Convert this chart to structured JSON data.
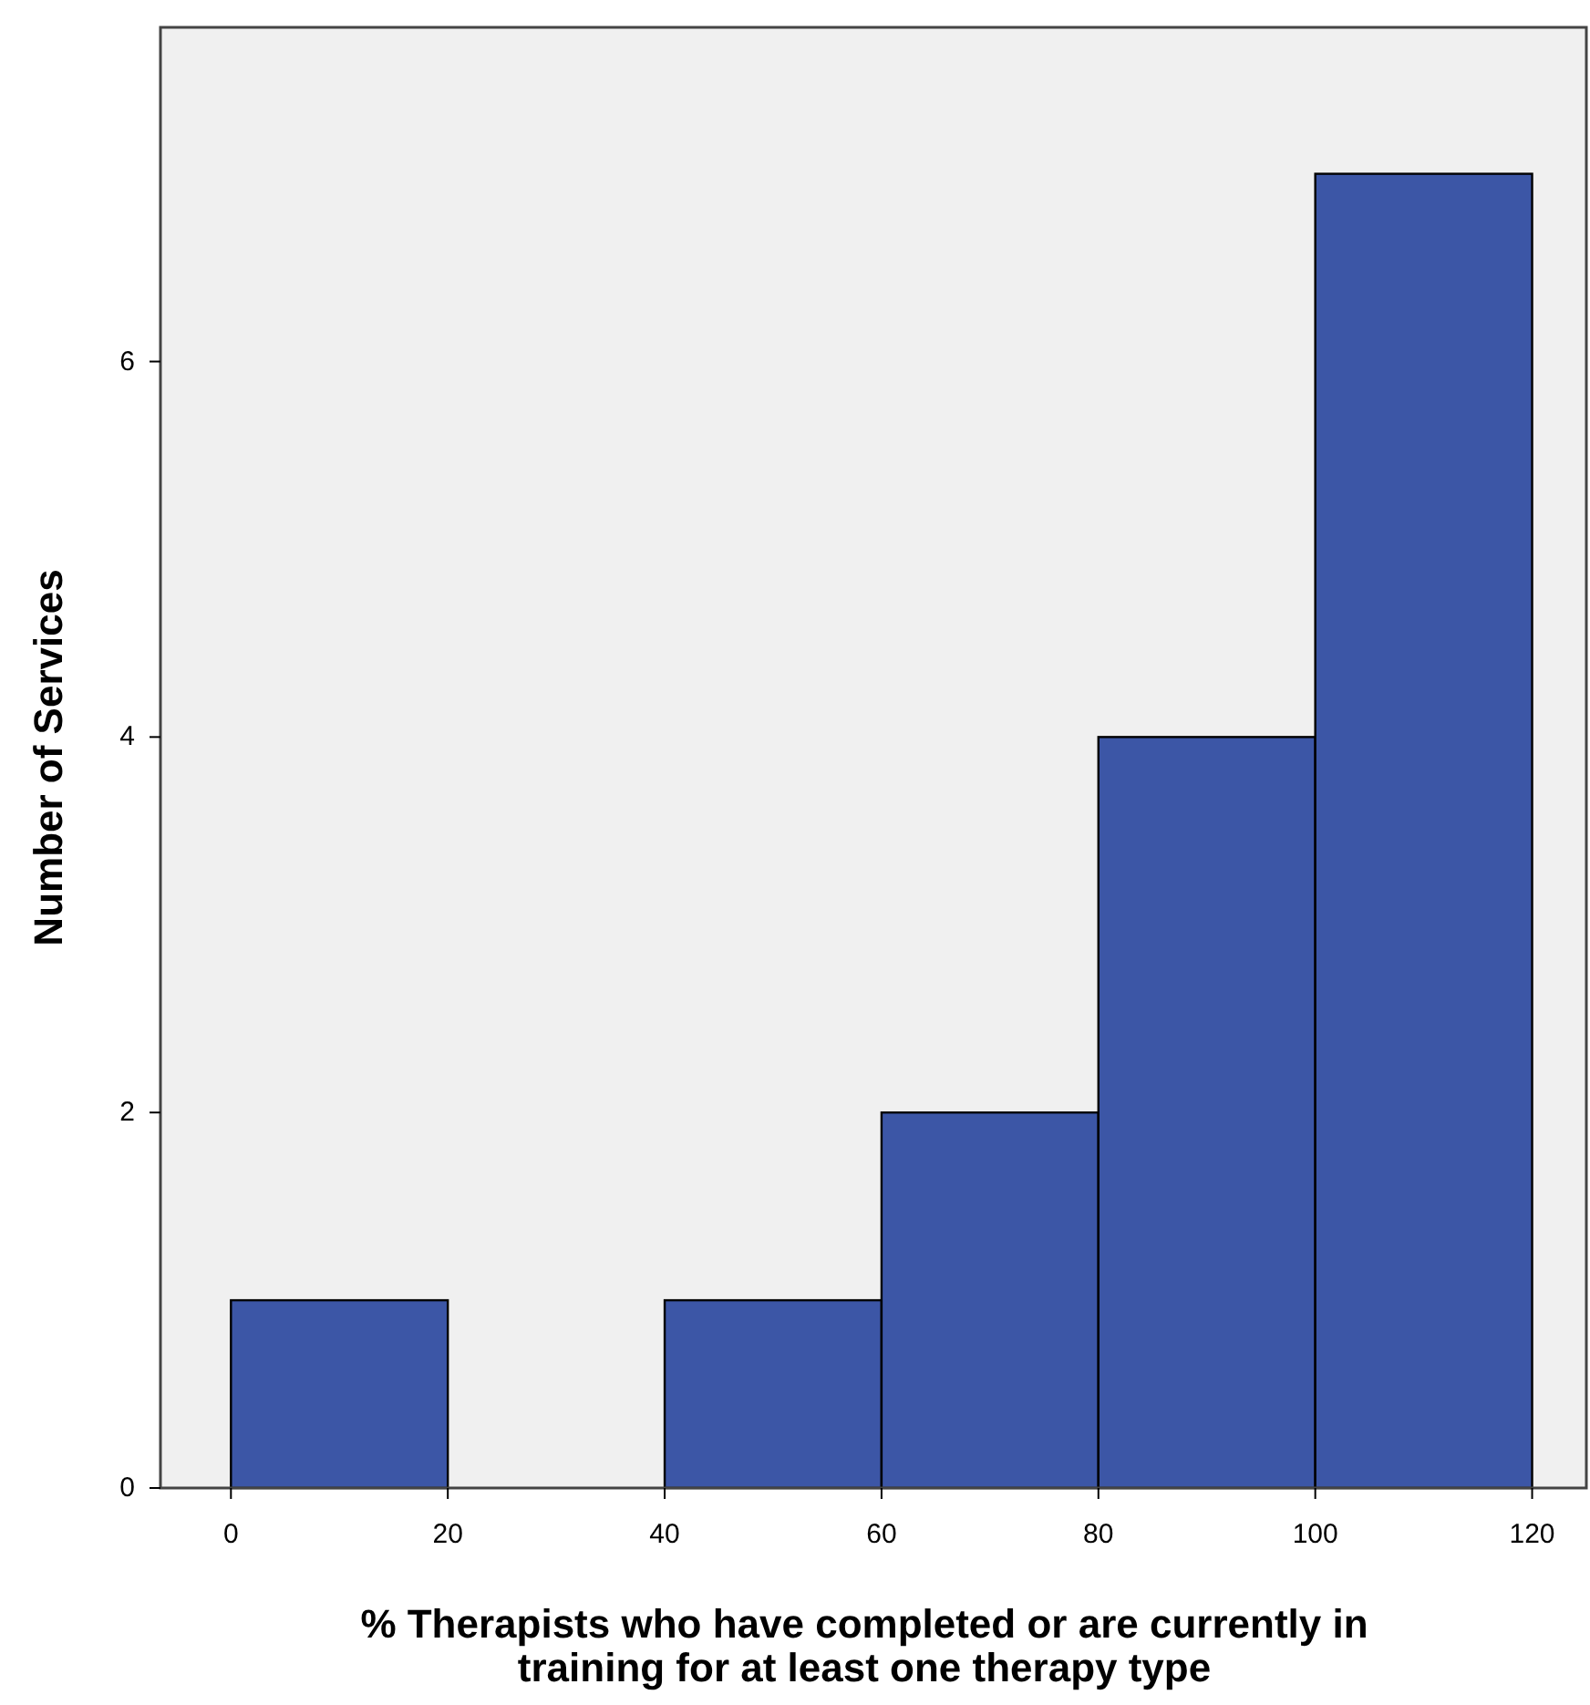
{
  "chart_data": {
    "type": "histogram",
    "xlabel": "% Therapists who have completed or are currently in training for at least one therapy type",
    "ylabel": "Number of Services",
    "bins": [
      0,
      20,
      40,
      60,
      80,
      100,
      120
    ],
    "values": [
      1,
      0,
      1,
      2,
      4,
      7
    ],
    "color": "#3c56a6",
    "xlim": [
      -6.5,
      125
    ],
    "xticks": [
      0,
      20,
      40,
      60,
      80,
      100,
      120
    ],
    "ylim": [
      0,
      7.78
    ],
    "yticks": [
      0,
      2,
      4,
      6
    ],
    "grid": false
  }
}
